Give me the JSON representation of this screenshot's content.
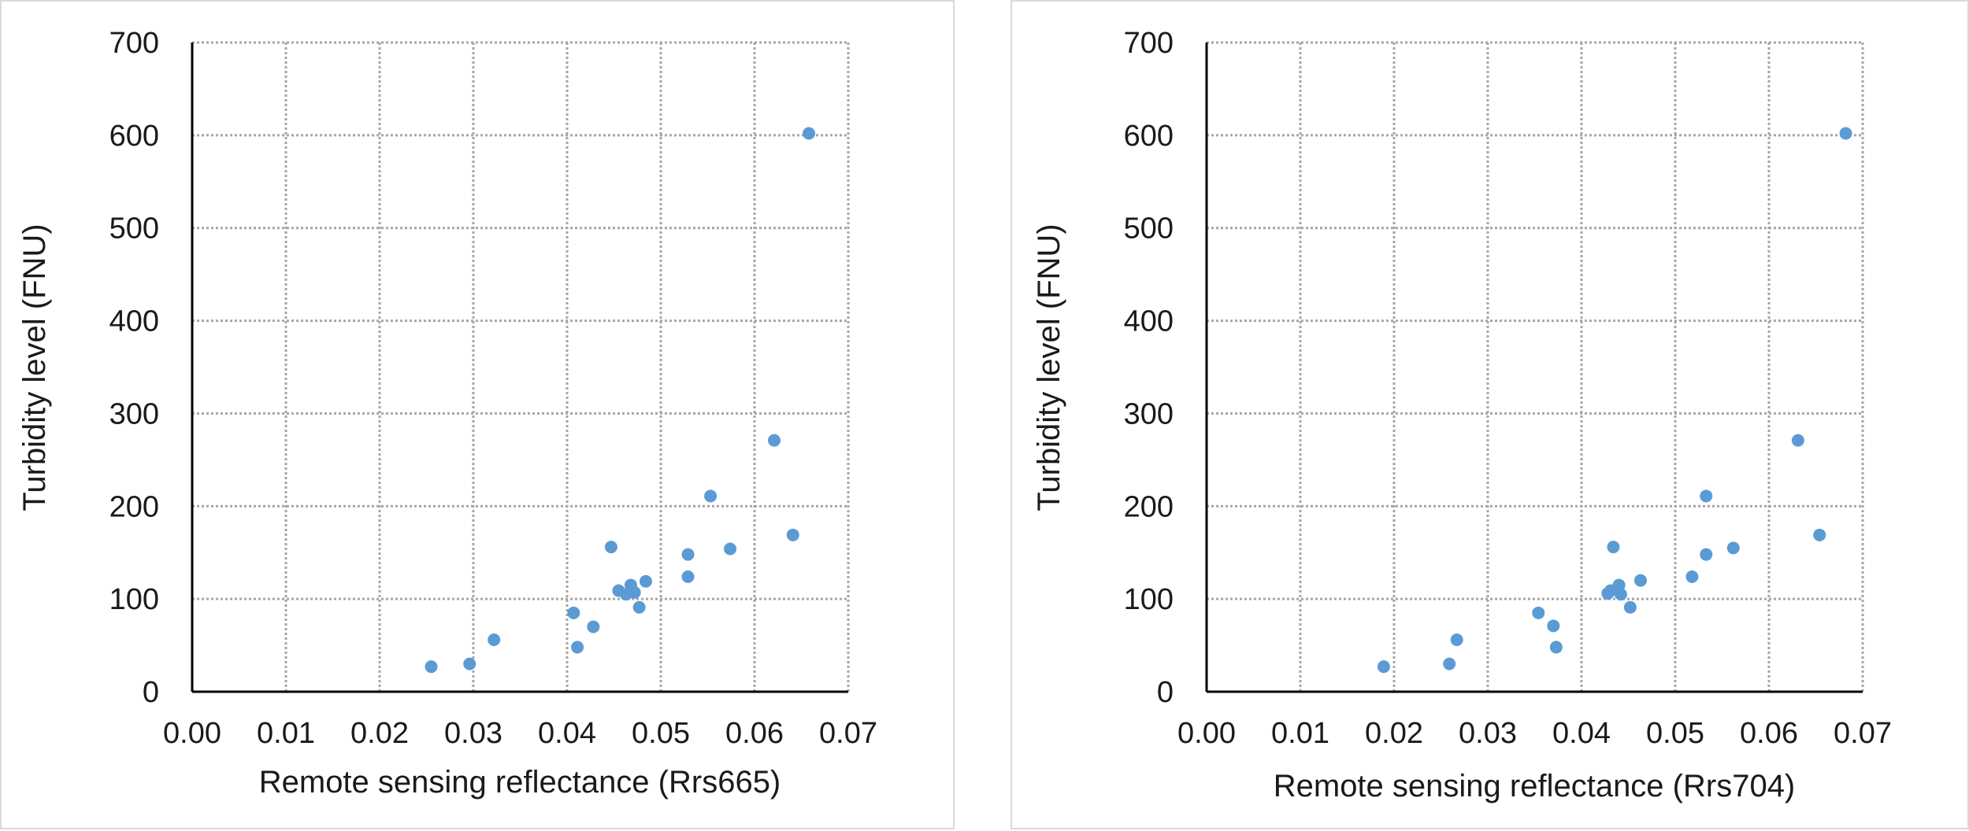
{
  "chart_data": [
    {
      "type": "scatter",
      "xlabel": "Remote sensing reflectance (Rrs665)",
      "ylabel": "Turbidity level (FNU)",
      "xlim": [
        0,
        0.07
      ],
      "ylim": [
        0,
        700
      ],
      "x_ticks": [
        "0.00",
        "0.01",
        "0.02",
        "0.03",
        "0.04",
        "0.05",
        "0.06",
        "0.07"
      ],
      "y_ticks": [
        "0",
        "100",
        "200",
        "300",
        "400",
        "500",
        "600",
        "700"
      ],
      "grid": true,
      "grid_style": "dotted",
      "marker_color": "#5b9bd5",
      "points": [
        {
          "x": 0.0255,
          "y": 27
        },
        {
          "x": 0.0296,
          "y": 30
        },
        {
          "x": 0.0322,
          "y": 56
        },
        {
          "x": 0.0407,
          "y": 85
        },
        {
          "x": 0.0411,
          "y": 48
        },
        {
          "x": 0.0428,
          "y": 70
        },
        {
          "x": 0.0447,
          "y": 156
        },
        {
          "x": 0.0455,
          "y": 109
        },
        {
          "x": 0.0463,
          "y": 105
        },
        {
          "x": 0.0468,
          "y": 115
        },
        {
          "x": 0.0472,
          "y": 107
        },
        {
          "x": 0.0477,
          "y": 91
        },
        {
          "x": 0.0484,
          "y": 119
        },
        {
          "x": 0.0529,
          "y": 148
        },
        {
          "x": 0.0529,
          "y": 124
        },
        {
          "x": 0.0553,
          "y": 211
        },
        {
          "x": 0.0574,
          "y": 154
        },
        {
          "x": 0.0621,
          "y": 271
        },
        {
          "x": 0.0641,
          "y": 169
        },
        {
          "x": 0.0658,
          "y": 602
        }
      ]
    },
    {
      "type": "scatter",
      "xlabel": "Remote sensing reflectance (Rrs704)",
      "ylabel": "Turbidity level (FNU)",
      "xlim": [
        0,
        0.07
      ],
      "ylim": [
        0,
        700
      ],
      "x_ticks": [
        "0.00",
        "0.01",
        "0.02",
        "0.03",
        "0.04",
        "0.05",
        "0.06",
        "0.07"
      ],
      "y_ticks": [
        "0",
        "100",
        "200",
        "300",
        "400",
        "500",
        "600",
        "700"
      ],
      "grid": true,
      "grid_style": "dotted",
      "marker_color": "#5b9bd5",
      "points": [
        {
          "x": 0.0189,
          "y": 27
        },
        {
          "x": 0.0259,
          "y": 30
        },
        {
          "x": 0.0267,
          "y": 56
        },
        {
          "x": 0.0354,
          "y": 85
        },
        {
          "x": 0.037,
          "y": 71
        },
        {
          "x": 0.0373,
          "y": 48
        },
        {
          "x": 0.0428,
          "y": 106
        },
        {
          "x": 0.0431,
          "y": 109
        },
        {
          "x": 0.0434,
          "y": 156
        },
        {
          "x": 0.044,
          "y": 115
        },
        {
          "x": 0.0442,
          "y": 105
        },
        {
          "x": 0.0452,
          "y": 91
        },
        {
          "x": 0.0463,
          "y": 120
        },
        {
          "x": 0.0518,
          "y": 124
        },
        {
          "x": 0.0533,
          "y": 148
        },
        {
          "x": 0.0533,
          "y": 211
        },
        {
          "x": 0.0562,
          "y": 155
        },
        {
          "x": 0.0631,
          "y": 271
        },
        {
          "x": 0.0654,
          "y": 169
        },
        {
          "x": 0.0682,
          "y": 602
        }
      ]
    }
  ]
}
